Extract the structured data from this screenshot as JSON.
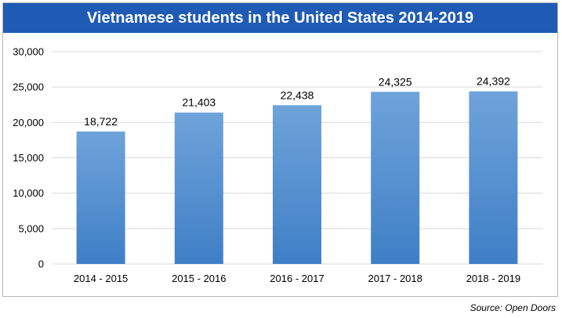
{
  "title": "Vietnamese students in the United States 2014-2019",
  "source": "Source: Open Doors",
  "chart_data": {
    "type": "bar",
    "categories": [
      "2014 - 2015",
      "2015 - 2016",
      "2016 - 2017",
      "2017 - 2018",
      "2018 - 2019"
    ],
    "values": [
      18722,
      21403,
      22438,
      24325,
      24392
    ],
    "data_labels": [
      "18,722",
      "21,403",
      "22,438",
      "24,325",
      "24,392"
    ],
    "title": "Vietnamese students in the United States 2014-2019",
    "xlabel": "",
    "ylabel": "",
    "ylim": [
      0,
      30000
    ],
    "yticks": [
      0,
      5000,
      10000,
      15000,
      20000,
      25000,
      30000
    ],
    "ytick_labels": [
      "0",
      "5,000",
      "10,000",
      "15,000",
      "20,000",
      "25,000",
      "30,000"
    ],
    "grid": true,
    "legend": "none",
    "bar_color_top": "#6fa3da",
    "bar_color_bottom": "#3f7fc6",
    "grid_color": "#d9d9d9"
  }
}
